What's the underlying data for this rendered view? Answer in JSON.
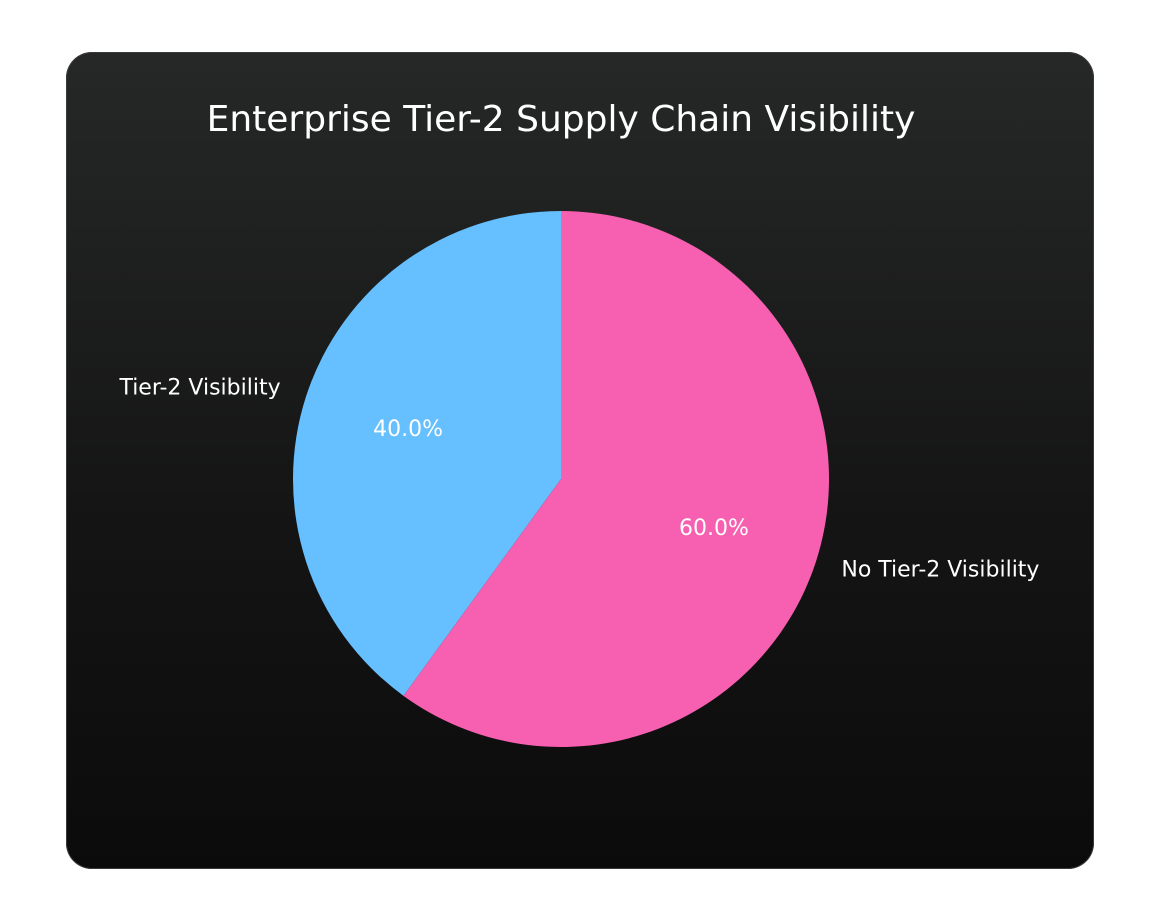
{
  "chart_data": {
    "type": "pie",
    "title": "Enterprise Tier-2 Supply Chain Visibility",
    "slices": [
      {
        "label": "Tier-2 Visibility",
        "value": 40.0,
        "pct_label": "40.0%",
        "color": "#66bfff"
      },
      {
        "label": "No Tier-2 Visibility",
        "value": 60.0,
        "pct_label": "60.0%",
        "color": "#f75fb0"
      }
    ],
    "start_angle_deg": 90,
    "direction": "counterclockwise"
  },
  "colors": {
    "card_top": "#262828",
    "card_bottom": "#0b0b0b",
    "text": "#ffffff"
  }
}
